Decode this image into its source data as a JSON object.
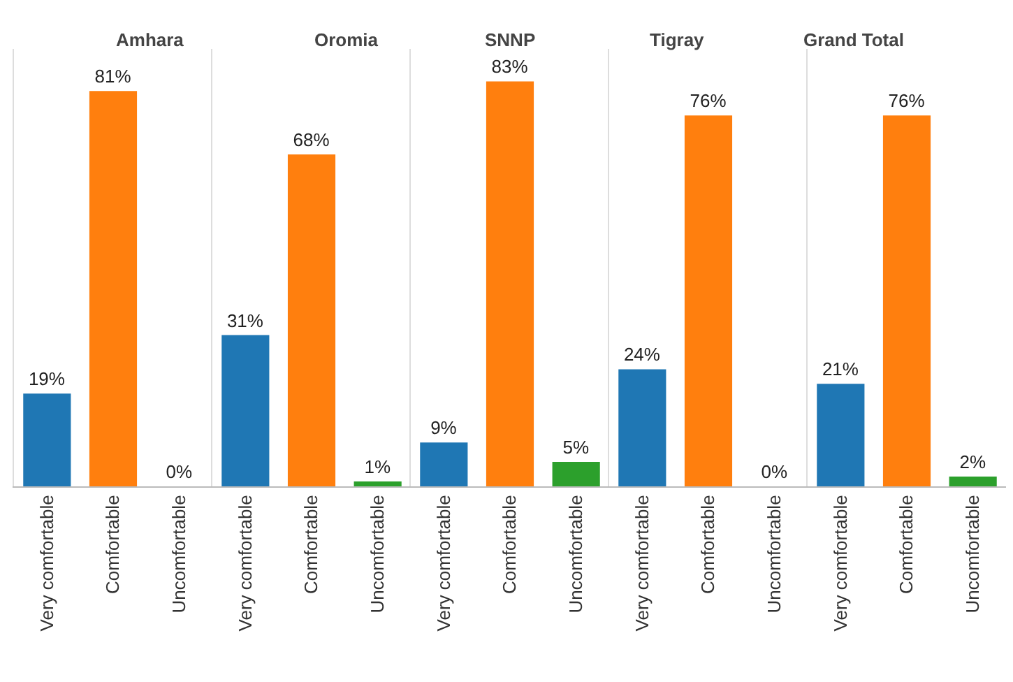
{
  "chart_data": [
    {
      "type": "bar",
      "title": "Amhara",
      "categories": [
        "Very comfortable",
        "Comfortable",
        "Uncomfortable"
      ],
      "values": [
        19,
        81,
        0
      ],
      "value_labels": [
        "19%",
        "81%",
        "0%"
      ],
      "colors": [
        "#1f77b4",
        "#ff7f0e",
        "#2ca02c"
      ]
    },
    {
      "type": "bar",
      "title": "Oromia",
      "categories": [
        "Very comfortable",
        "Comfortable",
        "Uncomfortable"
      ],
      "values": [
        31,
        68,
        1
      ],
      "value_labels": [
        "31%",
        "68%",
        "1%"
      ],
      "colors": [
        "#1f77b4",
        "#ff7f0e",
        "#2ca02c"
      ]
    },
    {
      "type": "bar",
      "title": "SNNP",
      "categories": [
        "Very comfortable",
        "Comfortable",
        "Uncomfortable"
      ],
      "values": [
        9,
        83,
        5
      ],
      "value_labels": [
        "9%",
        "83%",
        "5%"
      ],
      "colors": [
        "#1f77b4",
        "#ff7f0e",
        "#2ca02c"
      ]
    },
    {
      "type": "bar",
      "title": "Tigray",
      "categories": [
        "Very comfortable",
        "Comfortable",
        "Uncomfortable"
      ],
      "values": [
        24,
        76,
        0
      ],
      "value_labels": [
        "24%",
        "76%",
        "0%"
      ],
      "colors": [
        "#1f77b4",
        "#ff7f0e",
        "#2ca02c"
      ]
    },
    {
      "type": "bar",
      "title": "Grand Total",
      "categories": [
        "Very comfortable",
        "Comfortable",
        "Uncomfortable"
      ],
      "values": [
        21,
        76,
        2
      ],
      "value_labels": [
        "21%",
        "76%",
        "2%"
      ],
      "colors": [
        "#1f77b4",
        "#ff7f0e",
        "#2ca02c"
      ]
    }
  ]
}
